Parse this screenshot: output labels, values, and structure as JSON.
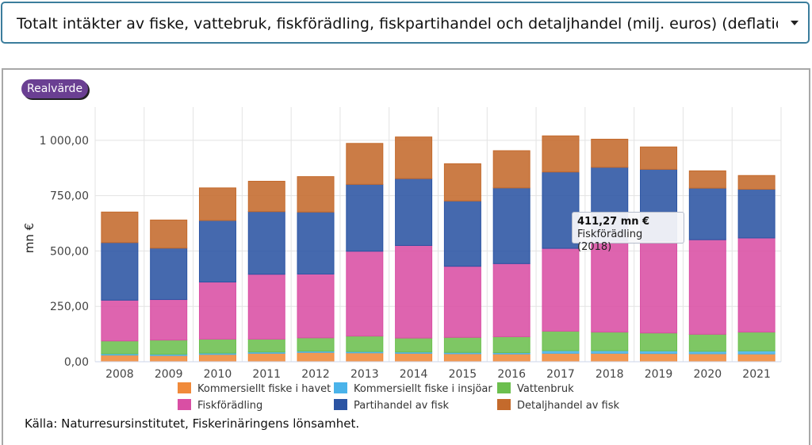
{
  "selector": {
    "label": "Totalt intäkter av fiske, vattebruk, fiskförädling, fiskpartihandel och detaljhandel (milj. euros) (deflation: levnadskostnadsindex)"
  },
  "real_button": "Realvärde",
  "tooltip": {
    "value": "411,27 mn €",
    "label": "Fiskförädling (2018)"
  },
  "source": "Källa: Naturresursinstitutet, Fiskerinäringens lönsamhet.",
  "colors": {
    "havet": "#f08a3a",
    "insjoar": "#4ab3ea",
    "vattenbruk": "#6cbf4e",
    "fiskforadling": "#d94fa4",
    "partihandel": "#2b54a3",
    "detaljhandel": "#c46a2c"
  },
  "chart_data": {
    "type": "bar",
    "stacked": true,
    "ylabel": "mn €",
    "ylim": [
      0,
      1150
    ],
    "yticks": [
      "0,00",
      "250,00",
      "500,00",
      "750,00",
      "1 000,00"
    ],
    "ytick_values": [
      0,
      250,
      500,
      750,
      1000
    ],
    "grid": true,
    "legend_position": "bottom",
    "categories": [
      "2008",
      "2009",
      "2010",
      "2011",
      "2012",
      "2013",
      "2014",
      "2015",
      "2016",
      "2017",
      "2018",
      "2019",
      "2020",
      "2021"
    ],
    "series": [
      {
        "name": "Kommersiellt fiske i havet",
        "key": "havet",
        "values": [
          30,
          28,
          33,
          38,
          42,
          40,
          38,
          36,
          35,
          38,
          38,
          37,
          36,
          35
        ]
      },
      {
        "name": "Kommersiellt fiske i insjöar",
        "key": "insjoar",
        "values": [
          6,
          6,
          6,
          6,
          6,
          6,
          6,
          6,
          6,
          12,
          12,
          12,
          11,
          14
        ]
      },
      {
        "name": "Vattenbruk",
        "key": "vattenbruk",
        "values": [
          58,
          64,
          63,
          58,
          60,
          70,
          63,
          68,
          72,
          88,
          84,
          81,
          77,
          85
        ]
      },
      {
        "name": "Fiskförädling",
        "key": "fiskforadling",
        "values": [
          184,
          183,
          258,
          293,
          288,
          383,
          418,
          321,
          330,
          374,
          411,
          416,
          427,
          425
        ]
      },
      {
        "name": "Partihandel av fisk",
        "key": "partihandel",
        "values": [
          260,
          232,
          278,
          283,
          280,
          302,
          302,
          295,
          342,
          345,
          333,
          323,
          233,
          220
        ]
      },
      {
        "name": "Detaljhandel av fisk",
        "key": "detaljhandel",
        "values": [
          138,
          127,
          147,
          137,
          160,
          185,
          188,
          168,
          168,
          163,
          127,
          101,
          78,
          62
        ]
      }
    ]
  }
}
